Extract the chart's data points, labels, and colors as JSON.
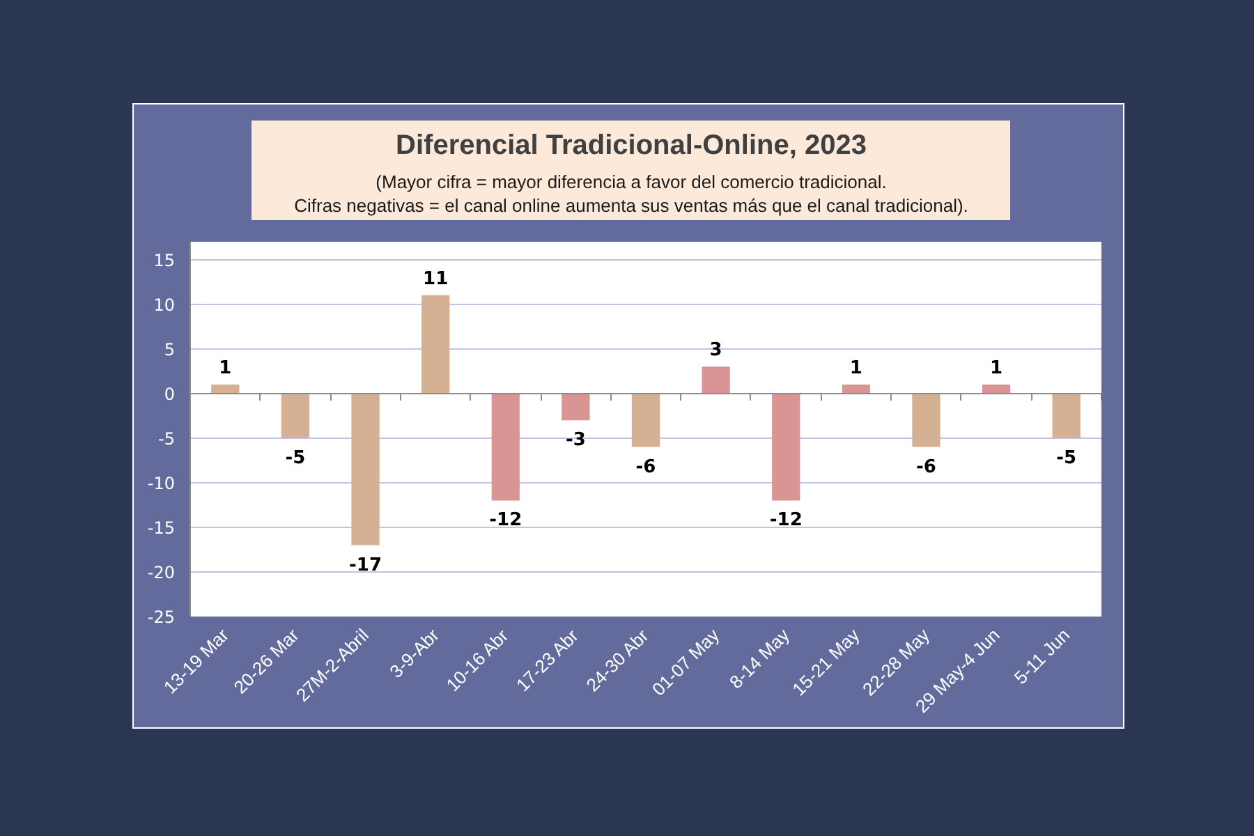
{
  "chart_data": {
    "type": "bar",
    "title": "Diferencial Tradicional-Online, 2023",
    "subtitle": "(Mayor cifra = mayor diferencia a favor del comercio tradicional.\nCifras negativas = el canal online aumenta sus ventas más que el canal tradicional).",
    "categories": [
      "13-19 Mar",
      "20-26 Mar",
      "27M-2-Abril",
      "3-9-Abr",
      "10-16 Abr",
      "17-23 Abr",
      "24-30 Abr",
      "01-07 May",
      "8-14 May",
      "15-21 May",
      "22-28 May",
      "29 May-4 Jun",
      "5-11 Jun"
    ],
    "values": [
      1,
      -5,
      -17,
      11,
      -12,
      -3,
      -6,
      3,
      -12,
      1,
      -6,
      1,
      -5
    ],
    "colors": [
      "#d5b092",
      "#d5b092",
      "#d5b092",
      "#d5b092",
      "#d99594",
      "#d99594",
      "#d5b092",
      "#d99594",
      "#d99594",
      "#d99594",
      "#d5b092",
      "#d99594",
      "#d5b092"
    ],
    "ylim": [
      -25,
      17
    ],
    "yticks": [
      -25,
      -20,
      -15,
      -10,
      -5,
      0,
      5,
      10,
      15
    ],
    "grid": "y",
    "data_labels": true
  }
}
